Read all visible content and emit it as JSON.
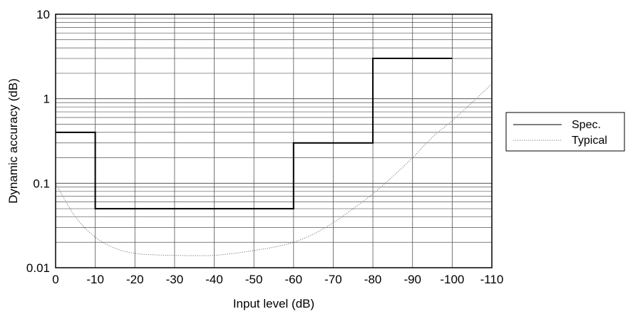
{
  "chart_data": {
    "type": "line",
    "title": "",
    "xlabel": "Input level (dB)",
    "ylabel": "Dynamic accuracy (dB)",
    "xlim": [
      0,
      -110
    ],
    "ylim": [
      0.01,
      10
    ],
    "y_scale": "log",
    "grid": true,
    "legend_position": "right",
    "x_ticks": [
      0,
      -10,
      -20,
      -30,
      -40,
      -50,
      -60,
      -70,
      -80,
      -90,
      -100,
      -110
    ],
    "x_tick_labels": [
      "0",
      "-10",
      "-20",
      "-30",
      "-40",
      "-50",
      "-60",
      "-70",
      "-80",
      "-90",
      "-100",
      "-110"
    ],
    "y_ticks": [
      0.01,
      0.1,
      1,
      10
    ],
    "y_tick_labels": [
      "0.01",
      "0.1",
      "1",
      "10"
    ],
    "series": [
      {
        "name": "Spec.",
        "style": "solid",
        "color": "#000000",
        "step": true,
        "x": [
          0,
          -10,
          -10,
          -60,
          -60,
          -80,
          -80,
          -100
        ],
        "y": [
          0.4,
          0.4,
          0.05,
          0.05,
          0.3,
          0.3,
          3,
          3
        ]
      },
      {
        "name": "Typical",
        "style": "dotted",
        "color": "#777777",
        "x": [
          0,
          -5,
          -10,
          -15,
          -20,
          -25,
          -30,
          -35,
          -40,
          -45,
          -50,
          -55,
          -60,
          -65,
          -70,
          -75,
          -80,
          -85,
          -90,
          -95,
          -100,
          -105,
          -110
        ],
        "y": [
          0.1,
          0.04,
          0.023,
          0.017,
          0.0148,
          0.0142,
          0.014,
          0.0139,
          0.014,
          0.0148,
          0.016,
          0.0175,
          0.02,
          0.025,
          0.034,
          0.05,
          0.075,
          0.12,
          0.2,
          0.35,
          0.55,
          0.9,
          1.5
        ]
      }
    ]
  }
}
